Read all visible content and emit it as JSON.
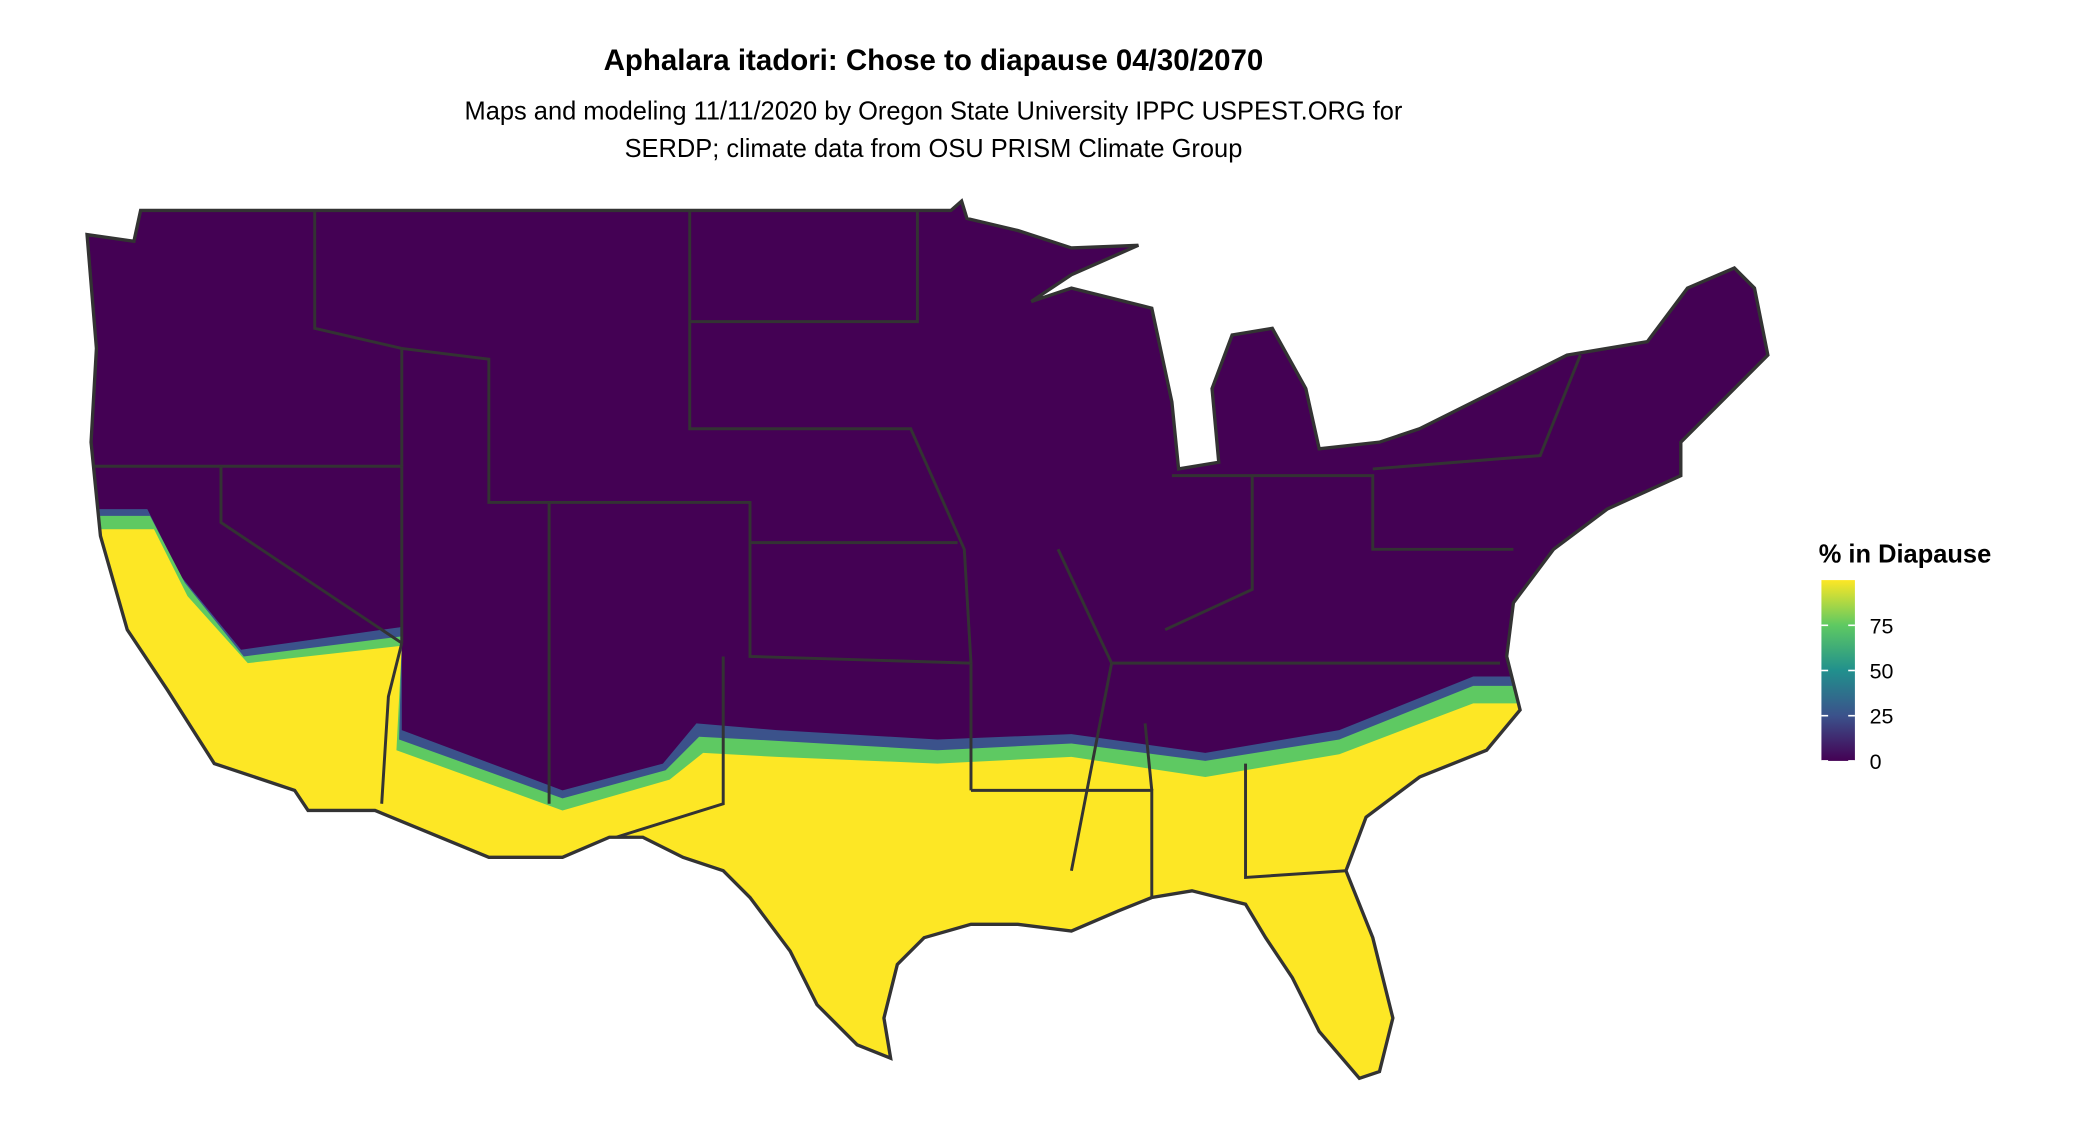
{
  "title": "Aphalara itadori: Chose to diapause 04/30/2070",
  "subtitle": [
    "Maps and modeling 11/11/2020 by Oregon State University IPPC USPEST.ORG for",
    "SERDP; climate data from OSU PRISM Climate Group"
  ],
  "legend": {
    "title": "% in Diapause",
    "range": [
      0,
      100
    ],
    "ticks": [
      0,
      25,
      50,
      75
    ]
  }
}
